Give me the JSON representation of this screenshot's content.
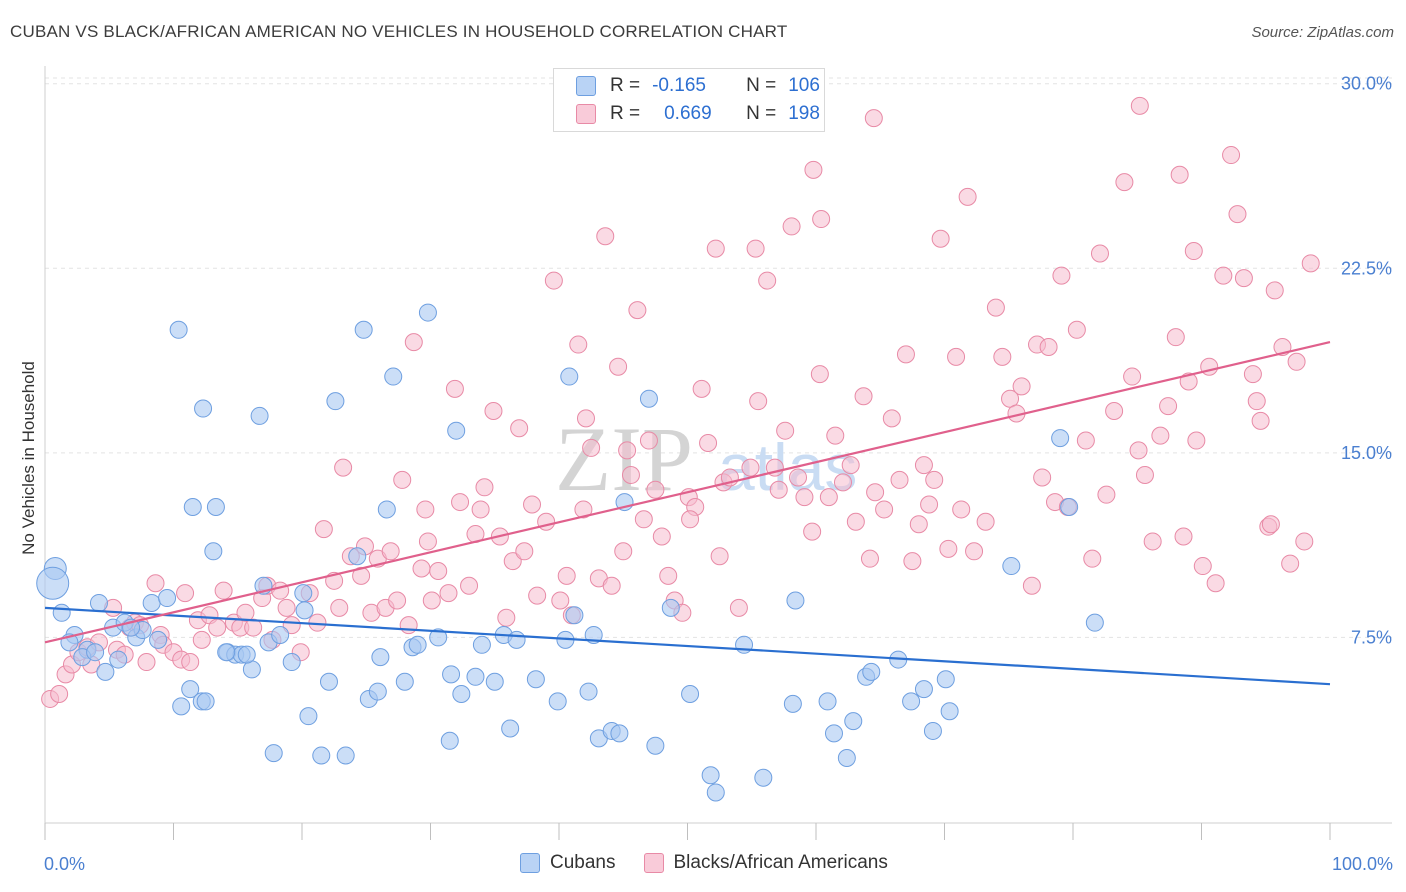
{
  "header": {
    "title": "CUBAN VS BLACK/AFRICAN AMERICAN NO VEHICLES IN HOUSEHOLD CORRELATION CHART",
    "source": "Source: ZipAtlas.com"
  },
  "legend": {
    "rows": [
      {
        "r_label": "R =",
        "r_value": "-0.165",
        "n_label": "N =",
        "n_value": "106"
      },
      {
        "r_label": "R =",
        "r_value": "0.669",
        "n_label": "N =",
        "n_value": "198"
      }
    ]
  },
  "watermark": {
    "zip": "ZIP",
    "atlas": "atlas"
  },
  "colors": {
    "blue_fill": "#a9c8f2",
    "blue_stroke": "#6e9fe0",
    "blue_line": "#2a6fd0",
    "pink_fill": "#f6bccd",
    "pink_stroke": "#e88aa6",
    "pink_line": "#e0608c",
    "axis_text": "#4a7fd0",
    "grid": "#e3e3e3"
  },
  "chart_data": {
    "type": "scatter",
    "title": "CUBAN VS BLACK/AFRICAN AMERICAN NO VEHICLES IN HOUSEHOLD CORRELATION CHART",
    "xlabel": "",
    "ylabel": "No Vehicles in Household",
    "xlim": [
      0,
      100
    ],
    "ylim": [
      0,
      30.8
    ],
    "x_tick_labels": [
      "0.0%",
      "100.0%"
    ],
    "y_ticks": [
      7.5,
      15.0,
      22.5,
      30.0
    ],
    "y_tick_labels": [
      "7.5%",
      "15.0%",
      "22.5%",
      "30.0%"
    ],
    "grid": true,
    "legend_position": "top-center",
    "series": [
      {
        "name": "Cubans",
        "color": "#a9c8f2",
        "trendline": {
          "x": [
            0,
            100
          ],
          "y": [
            8.7,
            5.6
          ]
        },
        "points": [
          [
            0.8,
            10.3
          ],
          [
            0.6,
            9.7
          ],
          [
            1.3,
            8.5
          ],
          [
            2.3,
            7.6
          ],
          [
            1.9,
            7.3
          ],
          [
            3.3,
            7.0
          ],
          [
            2.9,
            6.7
          ],
          [
            4.2,
            8.9
          ],
          [
            5.3,
            7.9
          ],
          [
            6.2,
            8.1
          ],
          [
            4.7,
            6.1
          ],
          [
            5.7,
            6.6
          ],
          [
            3.9,
            6.9
          ],
          [
            7.1,
            7.5
          ],
          [
            8.3,
            8.9
          ],
          [
            7.6,
            7.8
          ],
          [
            8.8,
            7.4
          ],
          [
            10.4,
            20.0
          ],
          [
            12.3,
            16.8
          ],
          [
            11.5,
            12.8
          ],
          [
            13.3,
            12.8
          ],
          [
            13.1,
            11.0
          ],
          [
            14.2,
            6.9
          ],
          [
            14.8,
            6.8
          ],
          [
            15.3,
            6.8
          ],
          [
            16.1,
            6.2
          ],
          [
            16.7,
            16.5
          ],
          [
            17.0,
            9.6
          ],
          [
            17.4,
            7.3
          ],
          [
            18.3,
            7.6
          ],
          [
            19.2,
            6.5
          ],
          [
            20.1,
            9.3
          ],
          [
            20.2,
            8.6
          ],
          [
            20.5,
            4.3
          ],
          [
            22.1,
            5.7
          ],
          [
            22.6,
            17.1
          ],
          [
            24.3,
            10.8
          ],
          [
            24.8,
            20.0
          ],
          [
            25.2,
            5.0
          ],
          [
            25.9,
            5.3
          ],
          [
            26.1,
            6.7
          ],
          [
            26.6,
            12.7
          ],
          [
            27.1,
            18.1
          ],
          [
            28.0,
            5.7
          ],
          [
            28.6,
            7.1
          ],
          [
            29.0,
            7.2
          ],
          [
            29.8,
            20.7
          ],
          [
            30.6,
            7.5
          ],
          [
            31.6,
            6.0
          ],
          [
            32.0,
            15.9
          ],
          [
            32.4,
            5.2
          ],
          [
            33.5,
            5.9
          ],
          [
            34.0,
            7.2
          ],
          [
            35.0,
            5.7
          ],
          [
            35.7,
            7.6
          ],
          [
            36.2,
            3.8
          ],
          [
            36.7,
            7.4
          ],
          [
            38.2,
            5.8
          ],
          [
            39.9,
            4.9
          ],
          [
            40.5,
            7.4
          ],
          [
            40.8,
            18.1
          ],
          [
            41.2,
            8.4
          ],
          [
            42.3,
            5.3
          ],
          [
            42.7,
            7.6
          ],
          [
            43.1,
            3.4
          ],
          [
            44.1,
            3.7
          ],
          [
            44.7,
            3.6
          ],
          [
            45.1,
            13.0
          ],
          [
            47.0,
            17.2
          ],
          [
            47.5,
            3.1
          ],
          [
            48.7,
            8.7
          ],
          [
            50.2,
            5.2
          ],
          [
            51.8,
            1.9
          ],
          [
            52.2,
            1.2
          ],
          [
            54.4,
            7.2
          ],
          [
            55.9,
            1.8
          ],
          [
            58.2,
            4.8
          ],
          [
            58.4,
            9.0
          ],
          [
            60.9,
            4.9
          ],
          [
            61.4,
            3.6
          ],
          [
            62.4,
            2.6
          ],
          [
            62.9,
            4.1
          ],
          [
            63.9,
            5.9
          ],
          [
            64.3,
            6.1
          ],
          [
            66.4,
            6.6
          ],
          [
            67.4,
            4.9
          ],
          [
            68.4,
            5.4
          ],
          [
            69.1,
            3.7
          ],
          [
            70.1,
            5.8
          ],
          [
            70.4,
            4.5
          ],
          [
            75.2,
            10.4
          ],
          [
            79.0,
            15.6
          ],
          [
            79.7,
            12.8
          ],
          [
            81.7,
            8.1
          ],
          [
            11.3,
            5.4
          ],
          [
            10.6,
            4.7
          ],
          [
            12.2,
            4.9
          ],
          [
            12.5,
            4.9
          ],
          [
            17.8,
            2.8
          ],
          [
            21.5,
            2.7
          ],
          [
            23.4,
            2.7
          ],
          [
            31.5,
            3.3
          ],
          [
            9.5,
            9.1
          ],
          [
            6.7,
            7.9
          ],
          [
            14.1,
            6.9
          ],
          [
            15.7,
            6.8
          ]
        ]
      },
      {
        "name": "Blacks/African Americans",
        "color": "#f6bccd",
        "trendline": {
          "x": [
            0,
            100
          ],
          "y": [
            7.3,
            19.5
          ]
        },
        "points": [
          [
            0.4,
            5.0
          ],
          [
            1.1,
            5.2
          ],
          [
            1.6,
            6.0
          ],
          [
            2.1,
            6.4
          ],
          [
            2.6,
            6.9
          ],
          [
            3.3,
            7.1
          ],
          [
            3.6,
            6.4
          ],
          [
            4.2,
            7.3
          ],
          [
            5.3,
            8.7
          ],
          [
            5.6,
            7.0
          ],
          [
            6.2,
            6.8
          ],
          [
            6.6,
            7.9
          ],
          [
            7.0,
            8.1
          ],
          [
            7.4,
            8.0
          ],
          [
            7.9,
            6.5
          ],
          [
            8.6,
            9.7
          ],
          [
            9.0,
            7.6
          ],
          [
            9.2,
            7.2
          ],
          [
            10.0,
            6.9
          ],
          [
            10.6,
            6.6
          ],
          [
            10.9,
            9.3
          ],
          [
            11.3,
            6.5
          ],
          [
            11.9,
            8.2
          ],
          [
            12.2,
            7.4
          ],
          [
            12.8,
            8.4
          ],
          [
            13.4,
            7.9
          ],
          [
            13.9,
            9.4
          ],
          [
            14.7,
            8.1
          ],
          [
            15.2,
            7.9
          ],
          [
            15.6,
            8.5
          ],
          [
            16.2,
            7.9
          ],
          [
            16.9,
            9.1
          ],
          [
            17.3,
            9.6
          ],
          [
            17.7,
            7.4
          ],
          [
            18.3,
            9.4
          ],
          [
            18.8,
            8.7
          ],
          [
            19.2,
            8.0
          ],
          [
            19.9,
            6.9
          ],
          [
            20.6,
            9.3
          ],
          [
            21.2,
            8.1
          ],
          [
            21.7,
            11.9
          ],
          [
            22.5,
            9.8
          ],
          [
            22.9,
            8.7
          ],
          [
            23.2,
            14.4
          ],
          [
            23.8,
            10.8
          ],
          [
            24.6,
            10.0
          ],
          [
            24.9,
            11.2
          ],
          [
            25.4,
            8.5
          ],
          [
            25.9,
            10.7
          ],
          [
            26.5,
            8.7
          ],
          [
            26.9,
            11.0
          ],
          [
            27.4,
            9.0
          ],
          [
            27.8,
            13.9
          ],
          [
            28.3,
            8.0
          ],
          [
            28.7,
            19.5
          ],
          [
            29.3,
            10.3
          ],
          [
            29.6,
            12.7
          ],
          [
            30.1,
            9.0
          ],
          [
            30.6,
            10.2
          ],
          [
            31.4,
            9.3
          ],
          [
            31.9,
            17.6
          ],
          [
            32.3,
            13.0
          ],
          [
            33.0,
            9.6
          ],
          [
            33.5,
            11.7
          ],
          [
            34.2,
            13.6
          ],
          [
            34.9,
            16.7
          ],
          [
            35.4,
            11.6
          ],
          [
            35.9,
            8.3
          ],
          [
            36.4,
            10.6
          ],
          [
            36.9,
            16.0
          ],
          [
            37.3,
            11.0
          ],
          [
            37.9,
            12.9
          ],
          [
            38.3,
            9.2
          ],
          [
            39.0,
            12.2
          ],
          [
            39.6,
            22.0
          ],
          [
            40.1,
            9.0
          ],
          [
            40.6,
            10.0
          ],
          [
            41.0,
            8.4
          ],
          [
            41.5,
            19.4
          ],
          [
            42.1,
            16.4
          ],
          [
            42.5,
            15.2
          ],
          [
            43.1,
            9.9
          ],
          [
            43.6,
            23.8
          ],
          [
            44.1,
            9.6
          ],
          [
            44.6,
            18.5
          ],
          [
            45.0,
            11.0
          ],
          [
            45.6,
            14.1
          ],
          [
            46.1,
            20.8
          ],
          [
            46.6,
            12.3
          ],
          [
            47.0,
            15.5
          ],
          [
            47.5,
            13.5
          ],
          [
            48.0,
            11.6
          ],
          [
            48.5,
            10.0
          ],
          [
            49.0,
            9.0
          ],
          [
            49.6,
            8.5
          ],
          [
            50.1,
            13.2
          ],
          [
            50.6,
            12.8
          ],
          [
            51.1,
            17.6
          ],
          [
            51.6,
            15.4
          ],
          [
            52.2,
            23.3
          ],
          [
            52.5,
            10.8
          ],
          [
            52.8,
            13.8
          ],
          [
            53.3,
            14.0
          ],
          [
            54.0,
            8.7
          ],
          [
            54.9,
            14.4
          ],
          [
            55.5,
            17.1
          ],
          [
            56.2,
            22.0
          ],
          [
            56.8,
            14.4
          ],
          [
            57.1,
            13.5
          ],
          [
            57.6,
            15.9
          ],
          [
            58.1,
            24.2
          ],
          [
            58.6,
            14.0
          ],
          [
            59.1,
            13.2
          ],
          [
            59.7,
            11.8
          ],
          [
            60.3,
            18.2
          ],
          [
            61.0,
            13.2
          ],
          [
            61.5,
            15.7
          ],
          [
            62.1,
            13.8
          ],
          [
            62.7,
            14.5
          ],
          [
            63.1,
            12.2
          ],
          [
            63.7,
            17.3
          ],
          [
            64.2,
            10.7
          ],
          [
            64.6,
            13.4
          ],
          [
            65.3,
            12.7
          ],
          [
            65.9,
            16.4
          ],
          [
            66.5,
            13.9
          ],
          [
            67.0,
            19.0
          ],
          [
            67.5,
            10.6
          ],
          [
            68.0,
            12.1
          ],
          [
            68.4,
            14.5
          ],
          [
            68.8,
            12.9
          ],
          [
            69.2,
            13.9
          ],
          [
            69.7,
            23.7
          ],
          [
            70.3,
            11.1
          ],
          [
            70.9,
            18.9
          ],
          [
            71.3,
            12.7
          ],
          [
            71.8,
            25.4
          ],
          [
            72.3,
            11.0
          ],
          [
            73.2,
            12.2
          ],
          [
            74.0,
            20.9
          ],
          [
            74.5,
            18.9
          ],
          [
            75.1,
            17.2
          ],
          [
            75.6,
            16.6
          ],
          [
            76.0,
            17.7
          ],
          [
            76.8,
            9.6
          ],
          [
            77.2,
            19.4
          ],
          [
            77.6,
            14.0
          ],
          [
            78.1,
            19.3
          ],
          [
            78.6,
            13.0
          ],
          [
            79.1,
            22.2
          ],
          [
            79.6,
            12.8
          ],
          [
            80.3,
            20.0
          ],
          [
            81.0,
            15.5
          ],
          [
            81.5,
            10.7
          ],
          [
            82.1,
            23.1
          ],
          [
            82.6,
            13.3
          ],
          [
            83.2,
            16.7
          ],
          [
            84.0,
            26.0
          ],
          [
            84.6,
            18.1
          ],
          [
            85.1,
            15.1
          ],
          [
            85.6,
            14.1
          ],
          [
            86.2,
            11.4
          ],
          [
            86.8,
            15.7
          ],
          [
            87.4,
            16.9
          ],
          [
            88.0,
            19.7
          ],
          [
            88.6,
            11.6
          ],
          [
            89.0,
            17.9
          ],
          [
            89.6,
            15.5
          ],
          [
            90.1,
            10.4
          ],
          [
            90.6,
            18.5
          ],
          [
            91.1,
            9.7
          ],
          [
            91.7,
            22.2
          ],
          [
            92.3,
            27.1
          ],
          [
            92.8,
            24.7
          ],
          [
            93.3,
            22.1
          ],
          [
            94.0,
            18.2
          ],
          [
            94.6,
            16.3
          ],
          [
            95.2,
            12.0
          ],
          [
            95.7,
            21.6
          ],
          [
            96.3,
            19.3
          ],
          [
            96.9,
            10.5
          ],
          [
            97.4,
            18.7
          ],
          [
            98.0,
            11.4
          ],
          [
            98.5,
            22.7
          ],
          [
            95.4,
            12.1
          ],
          [
            94.3,
            17.1
          ],
          [
            89.4,
            23.2
          ],
          [
            88.3,
            26.3
          ],
          [
            85.2,
            29.1
          ],
          [
            64.5,
            28.6
          ],
          [
            60.4,
            24.5
          ],
          [
            59.8,
            26.5
          ],
          [
            55.3,
            23.3
          ],
          [
            50.2,
            12.3
          ],
          [
            45.3,
            15.1
          ],
          [
            41.9,
            12.7
          ],
          [
            33.9,
            12.7
          ],
          [
            29.8,
            11.4
          ]
        ]
      }
    ]
  }
}
